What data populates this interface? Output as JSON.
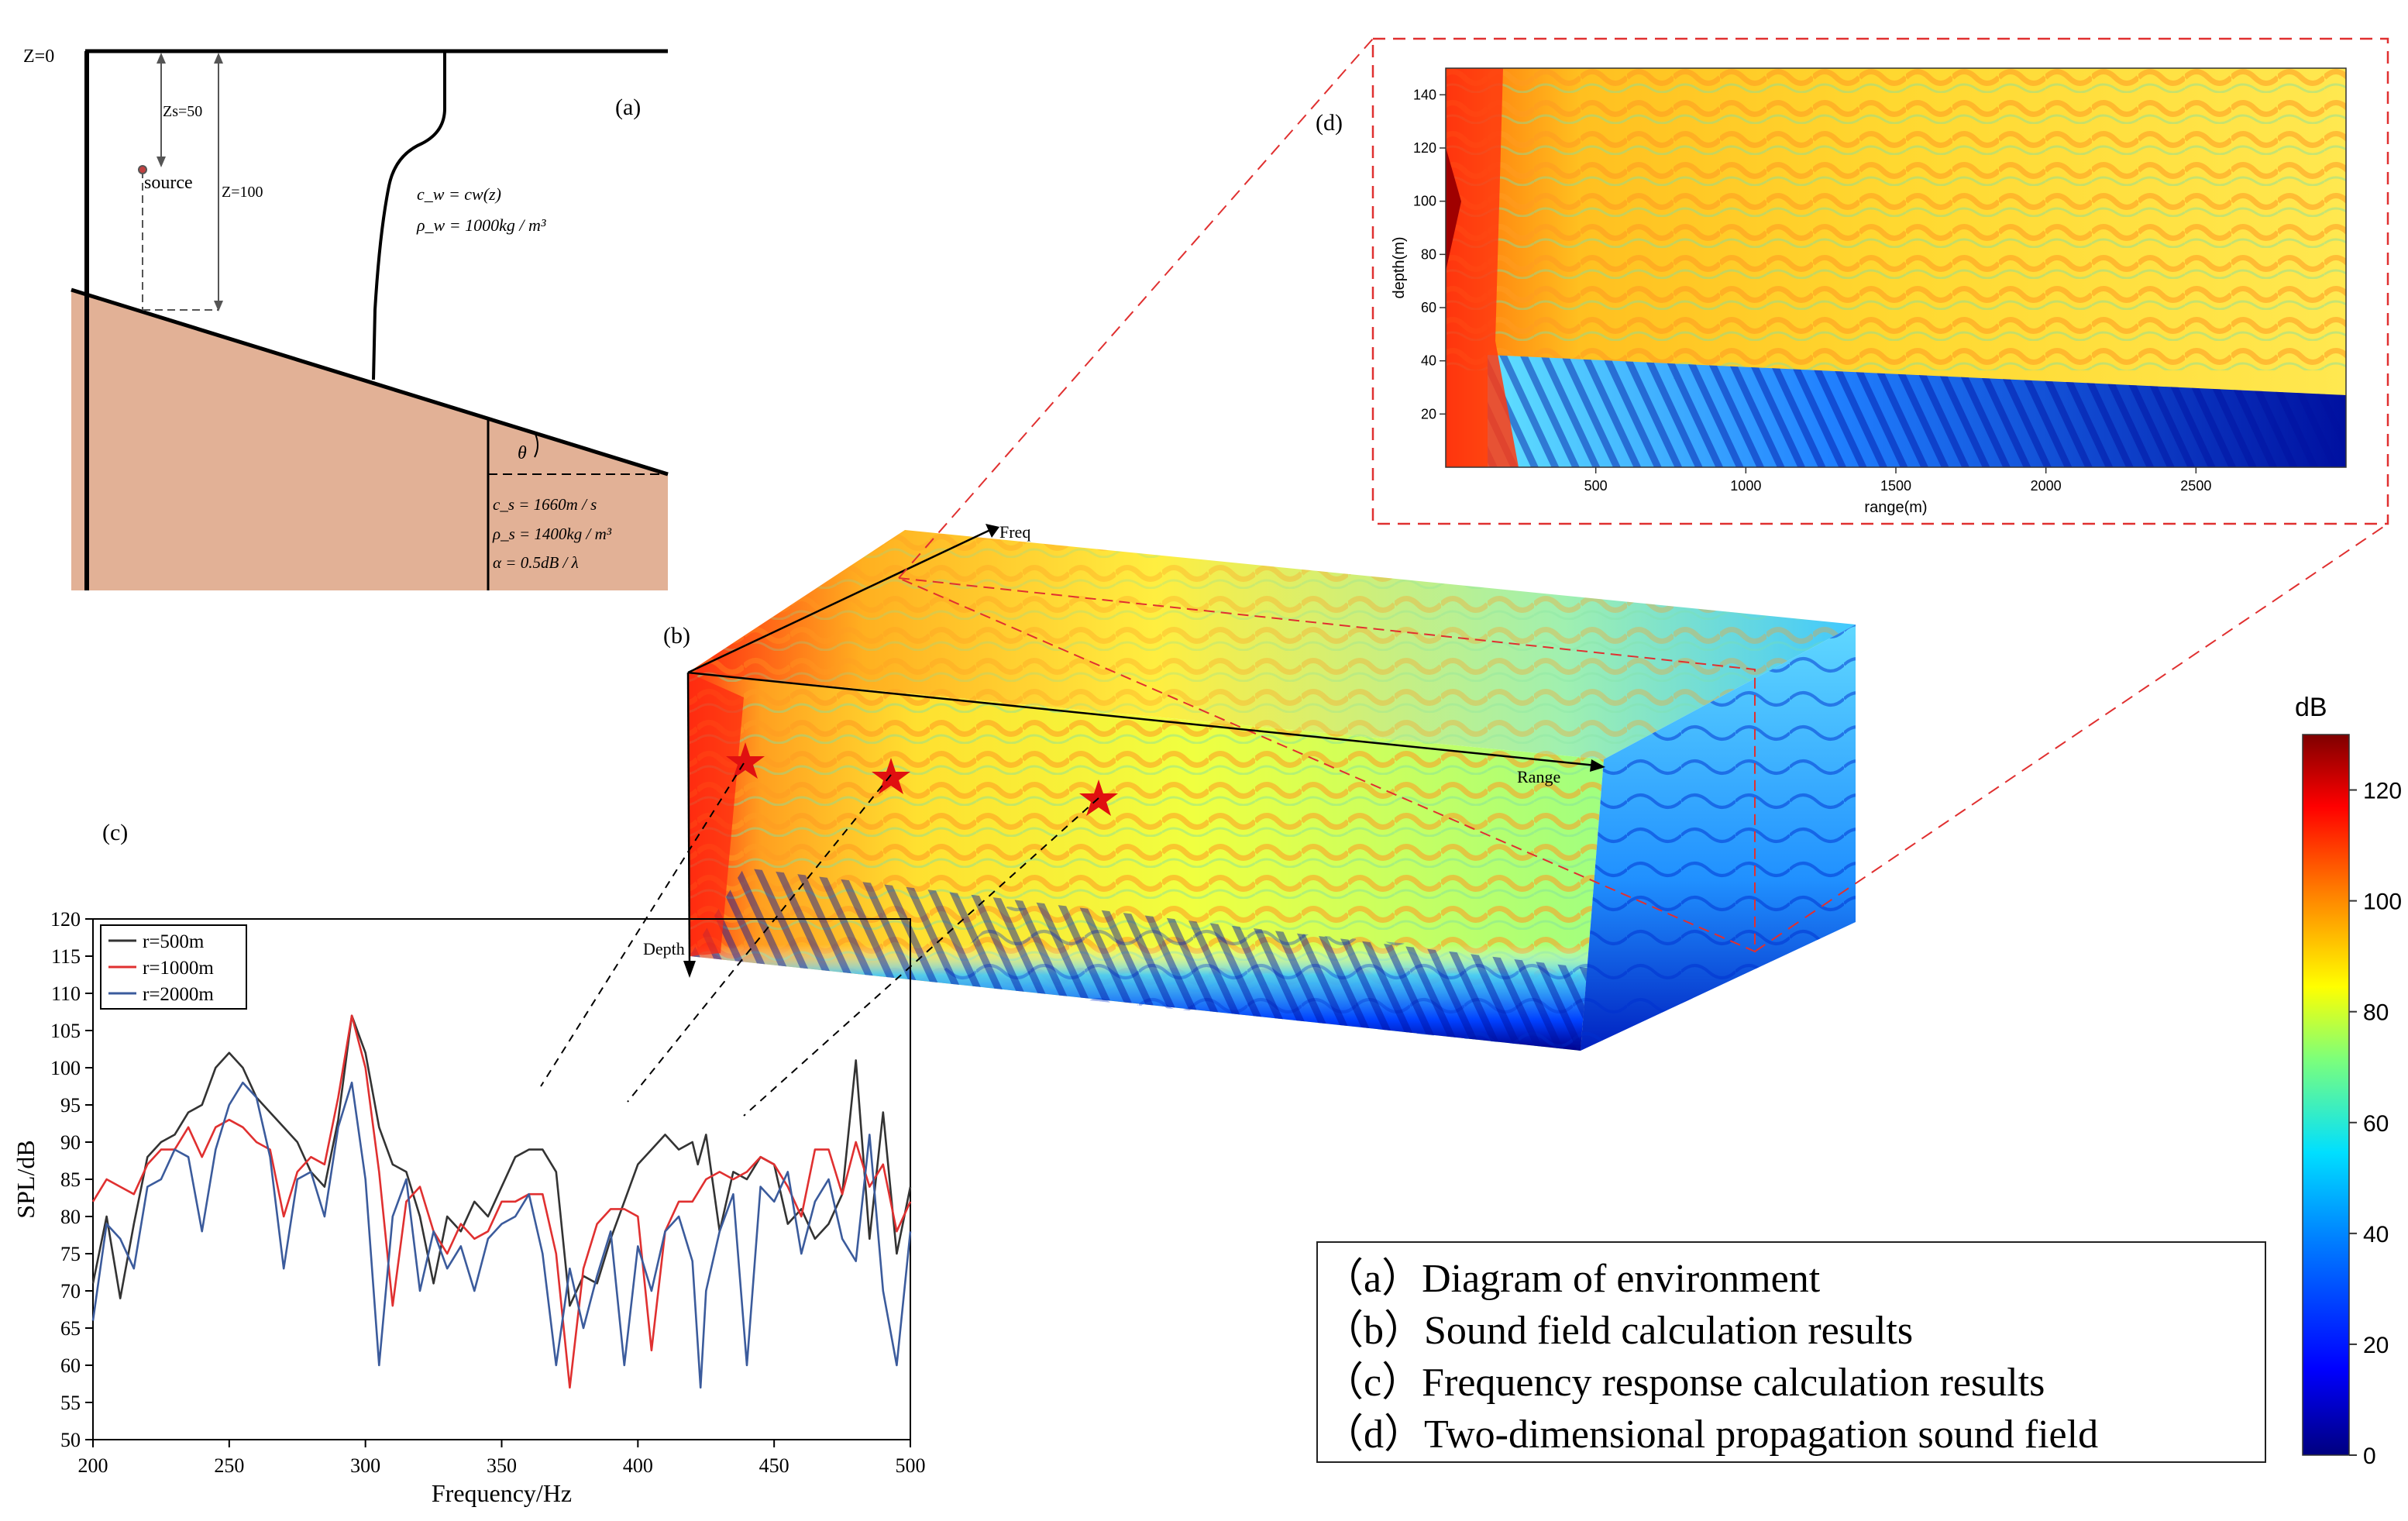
{
  "panels": {
    "a": {
      "tag": "(a)",
      "surface_label": "Z=0",
      "source_depth_label": "Zs=50",
      "water_depth_label": "Z=100",
      "source_label": "source",
      "water_sound_speed": "c_w = cw(z)",
      "water_density": "ρ_w = 1000kg / m³",
      "slope_angle_label": "θ",
      "sediment_speed": "c_s = 1660m / s",
      "sediment_density": "ρ_s = 1400kg / m³",
      "sediment_attenuation": "α = 0.5dB / λ",
      "colors": {
        "sediment": "#e2b196",
        "line": "#000000"
      }
    },
    "b": {
      "tag": "(b)",
      "axis_freq": "Freq",
      "axis_range": "Range",
      "axis_depth": "Depth",
      "marker_color": "#e01010"
    },
    "c": {
      "tag": "(c)"
    },
    "d": {
      "tag": "(d)"
    }
  },
  "legend_box": {
    "lines": [
      "（a）Diagram of environment",
      "（b）Sound field calculation results",
      "（c）Frequency response calculation results",
      "（d）Two-dimensional propagation sound field"
    ]
  },
  "colorbar": {
    "label": "dB",
    "ticks": [
      "0",
      "20",
      "40",
      "60",
      "80",
      "100",
      "120"
    ],
    "range": [
      0,
      130
    ]
  },
  "chart_data": [
    {
      "type": "line",
      "title": "",
      "xlabel": "Frequency/Hz",
      "ylabel": "SPL/dB",
      "xlim": [
        200,
        500
      ],
      "ylim": [
        50,
        120
      ],
      "xticks": [
        200,
        250,
        300,
        350,
        400,
        450,
        500
      ],
      "yticks": [
        50,
        55,
        60,
        65,
        70,
        75,
        80,
        85,
        90,
        95,
        100,
        105,
        110,
        115,
        120
      ],
      "legend_position": "top-left",
      "series": [
        {
          "name": "r=500m",
          "color": "#333333",
          "points": [
            [
              200,
              71
            ],
            [
              205,
              80
            ],
            [
              210,
              69
            ],
            [
              215,
              79
            ],
            [
              220,
              88
            ],
            [
              225,
              90
            ],
            [
              230,
              91
            ],
            [
              235,
              94
            ],
            [
              240,
              95
            ],
            [
              245,
              100
            ],
            [
              250,
              102
            ],
            [
              255,
              100
            ],
            [
              260,
              96
            ],
            [
              265,
              94
            ],
            [
              270,
              92
            ],
            [
              275,
              90
            ],
            [
              280,
              86
            ],
            [
              285,
              84
            ],
            [
              290,
              93
            ],
            [
              295,
              107
            ],
            [
              300,
              102
            ],
            [
              305,
              92
            ],
            [
              310,
              87
            ],
            [
              315,
              86
            ],
            [
              320,
              80
            ],
            [
              325,
              71
            ],
            [
              330,
              80
            ],
            [
              335,
              78
            ],
            [
              340,
              82
            ],
            [
              345,
              80
            ],
            [
              350,
              84
            ],
            [
              355,
              88
            ],
            [
              360,
              89
            ],
            [
              365,
              89
            ],
            [
              370,
              86
            ],
            [
              375,
              68
            ],
            [
              380,
              72
            ],
            [
              385,
              71
            ],
            [
              390,
              77
            ],
            [
              395,
              82
            ],
            [
              400,
              87
            ],
            [
              405,
              89
            ],
            [
              410,
              91
            ],
            [
              415,
              89
            ],
            [
              420,
              90
            ],
            [
              422,
              87
            ],
            [
              425,
              91
            ],
            [
              430,
              78
            ],
            [
              435,
              86
            ],
            [
              440,
              85
            ],
            [
              445,
              88
            ],
            [
              450,
              87
            ],
            [
              455,
              79
            ],
            [
              460,
              81
            ],
            [
              465,
              77
            ],
            [
              470,
              79
            ],
            [
              475,
              83
            ],
            [
              480,
              101
            ],
            [
              485,
              77
            ],
            [
              490,
              94
            ],
            [
              495,
              75
            ],
            [
              500,
              84
            ]
          ]
        },
        {
          "name": "r=1000m",
          "color": "#e03030",
          "points": [
            [
              200,
              82
            ],
            [
              205,
              85
            ],
            [
              210,
              84
            ],
            [
              215,
              83
            ],
            [
              220,
              87
            ],
            [
              225,
              89
            ],
            [
              230,
              89
            ],
            [
              235,
              92
            ],
            [
              240,
              88
            ],
            [
              245,
              92
            ],
            [
              250,
              93
            ],
            [
              255,
              92
            ],
            [
              260,
              90
            ],
            [
              265,
              89
            ],
            [
              270,
              80
            ],
            [
              275,
              86
            ],
            [
              280,
              88
            ],
            [
              285,
              87
            ],
            [
              290,
              96
            ],
            [
              295,
              107
            ],
            [
              300,
              100
            ],
            [
              305,
              86
            ],
            [
              310,
              68
            ],
            [
              315,
              82
            ],
            [
              320,
              84
            ],
            [
              325,
              78
            ],
            [
              330,
              75
            ],
            [
              335,
              79
            ],
            [
              340,
              77
            ],
            [
              345,
              78
            ],
            [
              350,
              82
            ],
            [
              355,
              82
            ],
            [
              360,
              83
            ],
            [
              365,
              83
            ],
            [
              370,
              75
            ],
            [
              375,
              57
            ],
            [
              380,
              73
            ],
            [
              385,
              79
            ],
            [
              390,
              81
            ],
            [
              395,
              81
            ],
            [
              400,
              80
            ],
            [
              405,
              62
            ],
            [
              410,
              78
            ],
            [
              415,
              82
            ],
            [
              420,
              82
            ],
            [
              425,
              85
            ],
            [
              430,
              86
            ],
            [
              435,
              85
            ],
            [
              440,
              86
            ],
            [
              445,
              88
            ],
            [
              450,
              87
            ],
            [
              455,
              84
            ],
            [
              460,
              80
            ],
            [
              465,
              89
            ],
            [
              470,
              89
            ],
            [
              475,
              83
            ],
            [
              480,
              90
            ],
            [
              485,
              84
            ],
            [
              490,
              87
            ],
            [
              495,
              78
            ],
            [
              500,
              82
            ]
          ]
        },
        {
          "name": "r=2000m",
          "color": "#3b5b9c",
          "points": [
            [
              200,
              66
            ],
            [
              205,
              79
            ],
            [
              210,
              77
            ],
            [
              215,
              73
            ],
            [
              220,
              84
            ],
            [
              225,
              85
            ],
            [
              230,
              89
            ],
            [
              235,
              88
            ],
            [
              240,
              78
            ],
            [
              245,
              89
            ],
            [
              250,
              95
            ],
            [
              255,
              98
            ],
            [
              260,
              96
            ],
            [
              265,
              88
            ],
            [
              270,
              73
            ],
            [
              275,
              85
            ],
            [
              280,
              86
            ],
            [
              285,
              80
            ],
            [
              290,
              92
            ],
            [
              295,
              98
            ],
            [
              300,
              85
            ],
            [
              305,
              60
            ],
            [
              310,
              80
            ],
            [
              315,
              85
            ],
            [
              320,
              70
            ],
            [
              325,
              78
            ],
            [
              330,
              73
            ],
            [
              335,
              76
            ],
            [
              340,
              70
            ],
            [
              345,
              77
            ],
            [
              350,
              79
            ],
            [
              355,
              80
            ],
            [
              360,
              83
            ],
            [
              365,
              75
            ],
            [
              370,
              60
            ],
            [
              375,
              73
            ],
            [
              380,
              65
            ],
            [
              385,
              72
            ],
            [
              390,
              78
            ],
            [
              395,
              60
            ],
            [
              400,
              76
            ],
            [
              405,
              70
            ],
            [
              410,
              78
            ],
            [
              415,
              80
            ],
            [
              420,
              74
            ],
            [
              423,
              57
            ],
            [
              425,
              70
            ],
            [
              430,
              78
            ],
            [
              435,
              83
            ],
            [
              440,
              60
            ],
            [
              445,
              84
            ],
            [
              450,
              82
            ],
            [
              455,
              86
            ],
            [
              460,
              75
            ],
            [
              465,
              82
            ],
            [
              470,
              85
            ],
            [
              475,
              77
            ],
            [
              480,
              74
            ],
            [
              485,
              91
            ],
            [
              490,
              70
            ],
            [
              495,
              60
            ],
            [
              500,
              78
            ]
          ]
        }
      ]
    },
    {
      "type": "heatmap",
      "title": "",
      "xlabel": "range(m)",
      "ylabel": "depth(m)",
      "xlim": [
        0,
        3000
      ],
      "ylim": [
        0,
        150
      ],
      "xticks": [
        500,
        1000,
        1500,
        2000,
        2500
      ],
      "yticks": [
        20,
        40,
        60,
        80,
        100,
        120,
        140
      ],
      "colormap": "jet",
      "value_range_db": [
        0,
        130
      ]
    }
  ]
}
